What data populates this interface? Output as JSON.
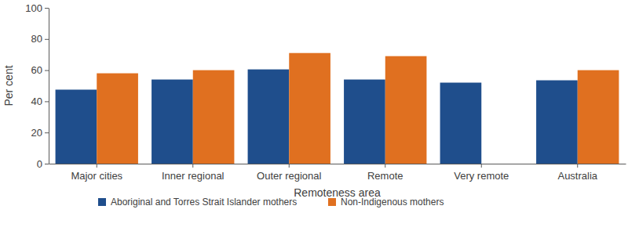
{
  "chart_data": {
    "type": "bar",
    "x_label": "Remoteness area",
    "y_label": "Per cent",
    "categories": [
      "Major cities",
      "Inner regional",
      "Outer regional",
      "Remote",
      "Very remote",
      "Australia"
    ],
    "series": [
      {
        "name": "Aboriginal and Torres Strait Islander mothers",
        "color": "#1f4e8c",
        "values": [
          47.5,
          54,
          60.5,
          54,
          52,
          53.5
        ]
      },
      {
        "name": "Non-Indigenous mothers",
        "color": "#e07020",
        "values": [
          58,
          60,
          71,
          69,
          null,
          60
        ]
      }
    ],
    "ylim": [
      0,
      100
    ],
    "yticks": [
      0,
      20,
      40,
      60,
      80,
      100
    ],
    "grid": false,
    "legend": "bottom"
  }
}
